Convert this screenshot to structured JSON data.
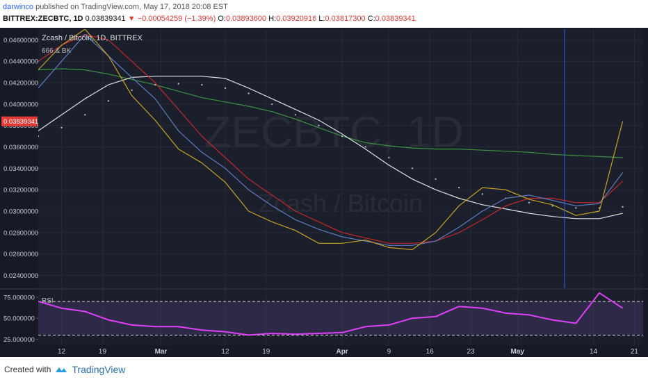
{
  "header": {
    "publisher": "darwinco",
    "published": " published on TradingView.com, May 17, 2018 20:08 EST",
    "symbol": "BITTREX:ZECBTC, 1D",
    "last": "0.03839341",
    "change": "▼ −0.00054259 (−1.39%)",
    "ohlc": [
      {
        "label": "O:",
        "value": "0.03893600"
      },
      {
        "label": "H:",
        "value": "0.03920916"
      },
      {
        "label": "L:",
        "value": "0.03817300"
      },
      {
        "label": "C:",
        "value": "0.03839341"
      }
    ]
  },
  "chart_data": [
    {
      "type": "line",
      "title": "Zcash / Bitcoin, 1D, BITTREX",
      "subtitle": "666 & BK",
      "watermark": "ZECBTC, 1D",
      "watermark_subtitle": "Zcash / Bitcoin",
      "x": [
        -4,
        0,
        4,
        8,
        12,
        16,
        20,
        24,
        28,
        32,
        36,
        40,
        44,
        48,
        52,
        56,
        60,
        64,
        68,
        72,
        76,
        80,
        84,
        88,
        92,
        96
      ],
      "xlim": [
        -4,
        99.5
      ],
      "ylim": [
        0.0228,
        0.047
      ],
      "yticks": [
        {
          "value": 0.046,
          "label": "0.04600000"
        },
        {
          "value": 0.044,
          "label": "0.04400000"
        },
        {
          "value": 0.042,
          "label": "0.04200000"
        },
        {
          "value": 0.04,
          "label": "0.04000000"
        },
        {
          "value": 0.038,
          "label": "0.03800000"
        },
        {
          "value": 0.036,
          "label": "0.03600000"
        },
        {
          "value": 0.034,
          "label": "0.03400000"
        },
        {
          "value": 0.032,
          "label": "0.03200000"
        },
        {
          "value": 0.03,
          "label": "0.03000000"
        },
        {
          "value": 0.028,
          "label": "0.02800000"
        },
        {
          "value": 0.026,
          "label": "0.02600000"
        },
        {
          "value": 0.024,
          "label": "0.02400000"
        }
      ],
      "last_value": 0.03839341,
      "last_color": "#e53935",
      "grid": true,
      "series": [
        {
          "color": "#3f9142",
          "style": "line",
          "values": [
            0.0432,
            0.0433,
            0.0432,
            0.0428,
            0.0423,
            0.0418,
            0.0412,
            0.0406,
            0.0402,
            0.0398,
            0.0393,
            0.0386,
            0.0378,
            0.037,
            0.0364,
            0.0361,
            0.0359,
            0.0358,
            0.0358,
            0.0357,
            0.0356,
            0.0355,
            0.0353,
            0.0352,
            0.0351,
            0.035
          ]
        },
        {
          "color": "#b0b6c2",
          "style": "dots",
          "values": [
            0.037,
            0.0378,
            0.039,
            0.0403,
            0.0413,
            0.0418,
            0.0419,
            0.0418,
            0.0415,
            0.041,
            0.04,
            0.039,
            0.038,
            0.037,
            0.036,
            0.035,
            0.034,
            0.033,
            0.0322,
            0.0316,
            0.0312,
            0.0308,
            0.0305,
            0.0303,
            0.0303,
            0.0304
          ]
        },
        {
          "color": "#e0e0e0",
          "style": "line",
          "values": [
            0.0375,
            0.039,
            0.0405,
            0.0418,
            0.0425,
            0.0426,
            0.0426,
            0.0426,
            0.0424,
            0.0415,
            0.0405,
            0.0395,
            0.0385,
            0.0372,
            0.0358,
            0.0343,
            0.033,
            0.032,
            0.0312,
            0.0306,
            0.0302,
            0.0298,
            0.0295,
            0.0293,
            0.0293,
            0.0298
          ]
        },
        {
          "color": "#c62828",
          "style": "line",
          "values": [
            0.044,
            0.0455,
            0.0465,
            0.046,
            0.044,
            0.042,
            0.0395,
            0.037,
            0.035,
            0.033,
            0.0315,
            0.03,
            0.029,
            0.028,
            0.0275,
            0.027,
            0.027,
            0.0272,
            0.028,
            0.0292,
            0.0305,
            0.0312,
            0.0312,
            0.0308,
            0.0308,
            0.0328
          ]
        },
        {
          "color": "#5c7cc4",
          "style": "line",
          "values": [
            0.0415,
            0.044,
            0.0465,
            0.0445,
            0.0425,
            0.0405,
            0.0375,
            0.0355,
            0.034,
            0.032,
            0.0305,
            0.0292,
            0.0283,
            0.0276,
            0.0272,
            0.0268,
            0.0268,
            0.0272,
            0.0285,
            0.03,
            0.0312,
            0.0315,
            0.031,
            0.0305,
            0.0307,
            0.0336
          ]
        },
        {
          "color": "#c9a227",
          "style": "line",
          "values": [
            0.0432,
            0.0455,
            0.047,
            0.0445,
            0.0408,
            0.0385,
            0.0358,
            0.0345,
            0.0327,
            0.03,
            0.029,
            0.0282,
            0.027,
            0.027,
            0.0273,
            0.0266,
            0.0264,
            0.028,
            0.0305,
            0.0322,
            0.032,
            0.0311,
            0.0306,
            0.0296,
            0.03,
            0.0384
          ]
        }
      ]
    },
    {
      "type": "line",
      "title": "RSI",
      "x": [
        -4,
        0,
        4,
        8,
        12,
        16,
        20,
        24,
        28,
        32,
        36,
        40,
        44,
        48,
        52,
        56,
        60,
        64,
        68,
        72,
        76,
        80,
        84,
        88,
        92,
        96
      ],
      "xlim": [
        -4,
        99.5
      ],
      "ylim": [
        18,
        84
      ],
      "xticks": [
        {
          "value": 0,
          "label": "12"
        },
        {
          "value": 7,
          "label": "19"
        },
        {
          "value": 17,
          "label": "Mar"
        },
        {
          "value": 28,
          "label": "12"
        },
        {
          "value": 35,
          "label": "19"
        },
        {
          "value": 48,
          "label": "Apr"
        },
        {
          "value": 56,
          "label": "9"
        },
        {
          "value": 63,
          "label": "16"
        },
        {
          "value": 70,
          "label": "23"
        },
        {
          "value": 78,
          "label": "May"
        },
        {
          "value": 91,
          "label": "14"
        },
        {
          "value": 98,
          "label": "21"
        }
      ],
      "yticks": [
        {
          "value": 75,
          "label": "75.000000"
        },
        {
          "value": 50,
          "label": "50.000000"
        },
        {
          "value": 25,
          "label": "25.000000"
        }
      ],
      "bands": [
        70,
        30
      ],
      "series": [
        {
          "color": "#e040fb",
          "style": "line",
          "values": [
            70,
            62,
            58,
            48,
            42,
            40,
            40,
            36,
            34,
            30,
            32,
            31,
            32,
            33,
            40,
            42,
            50,
            52,
            64,
            62,
            56,
            54,
            48,
            44,
            80,
            62
          ]
        }
      ]
    }
  ],
  "footer": {
    "created": "Created with",
    "brand": "TradingView"
  }
}
